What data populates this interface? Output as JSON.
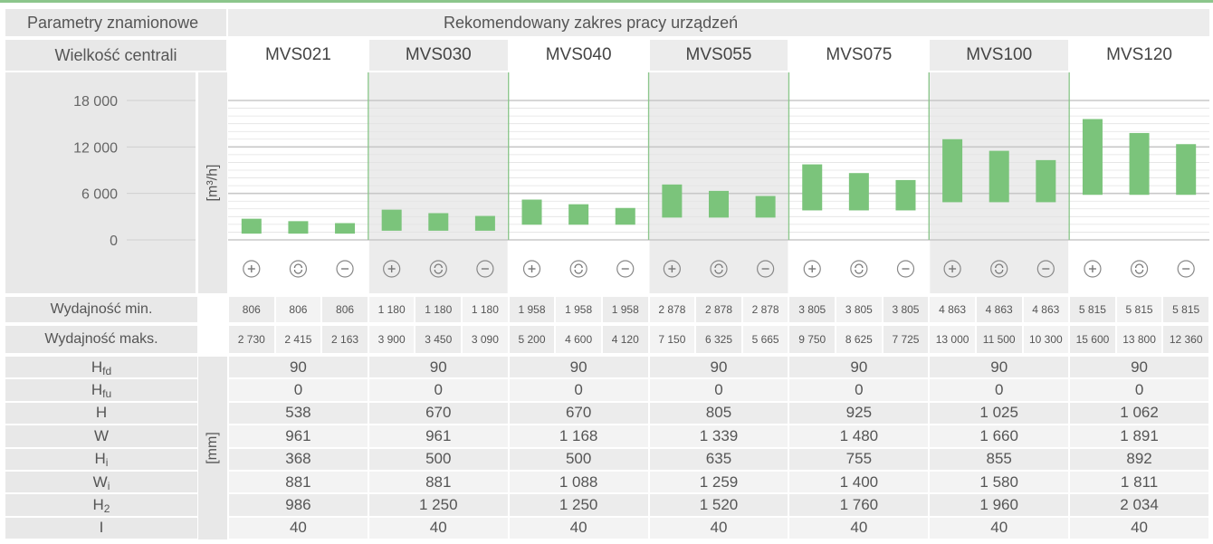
{
  "header": {
    "left_title": "Parametry znamionowe",
    "right_title": "Rekomendowany zakres pracy urządzeń"
  },
  "size_label": "Wielkość centrali",
  "models": [
    "MVS021",
    "MVS030",
    "MVS040",
    "MVS055",
    "MVS075",
    "MVS100",
    "MVS120"
  ],
  "unit_flow": "[m³/h]",
  "unit_mm": "[mm]",
  "icons": [
    "plus-circle-icon",
    "sync-circle-icon",
    "minus-circle-icon"
  ],
  "chart_data": {
    "type": "bar",
    "subtype": "floating-range",
    "ylim": [
      0,
      18000
    ],
    "yticks": [
      0,
      6000,
      12000,
      18000
    ],
    "ytick_labels": [
      "0",
      "6 000",
      "12 000",
      "18 000"
    ],
    "ylabel": "[m³/h]",
    "colors": {
      "bar": "#7bc47b",
      "divider": "#8cc68c"
    },
    "ranges": [
      {
        "model": "MVS021",
        "low": [
          806,
          806,
          806
        ],
        "high": [
          2730,
          2415,
          2163
        ]
      },
      {
        "model": "MVS030",
        "low": [
          1180,
          1180,
          1180
        ],
        "high": [
          3900,
          3450,
          3090
        ]
      },
      {
        "model": "MVS040",
        "low": [
          1958,
          1958,
          1958
        ],
        "high": [
          5200,
          4600,
          4120
        ]
      },
      {
        "model": "MVS055",
        "low": [
          2878,
          2878,
          2878
        ],
        "high": [
          7150,
          6325,
          5665
        ]
      },
      {
        "model": "MVS075",
        "low": [
          3805,
          3805,
          3805
        ],
        "high": [
          9750,
          8625,
          7725
        ]
      },
      {
        "model": "MVS100",
        "low": [
          4863,
          4863,
          4863
        ],
        "high": [
          13000,
          11500,
          10300
        ]
      },
      {
        "model": "MVS120",
        "low": [
          5815,
          5815,
          5815
        ],
        "high": [
          15600,
          13800,
          12360
        ]
      }
    ]
  },
  "min_row": {
    "label": "Wydajność min.",
    "values": [
      "806",
      "806",
      "806",
      "1 180",
      "1 180",
      "1 180",
      "1 958",
      "1 958",
      "1 958",
      "2 878",
      "2 878",
      "2 878",
      "3 805",
      "3 805",
      "3 805",
      "4 863",
      "4 863",
      "4 863",
      "5 815",
      "5 815",
      "5 815"
    ]
  },
  "max_row": {
    "label": "Wydajność maks.",
    "values": [
      "2 730",
      "2 415",
      "2 163",
      "3 900",
      "3 450",
      "3 090",
      "5 200",
      "4 600",
      "4 120",
      "7 150",
      "6 325",
      "5 665",
      "9 750",
      "8 625",
      "7 725",
      "13 000",
      "11 500",
      "10 300",
      "15 600",
      "13 800",
      "12 360"
    ]
  },
  "dims": [
    {
      "label": "H",
      "sub": "fd",
      "values": [
        "90",
        "90",
        "90",
        "90",
        "90",
        "90",
        "90"
      ]
    },
    {
      "label": "H",
      "sub": "fu",
      "values": [
        "0",
        "0",
        "0",
        "0",
        "0",
        "0",
        "0"
      ]
    },
    {
      "label": "H",
      "sub": "",
      "values": [
        "538",
        "670",
        "670",
        "805",
        "925",
        "1 025",
        "1 062"
      ]
    },
    {
      "label": "W",
      "sub": "",
      "values": [
        "961",
        "961",
        "1 168",
        "1 339",
        "1 480",
        "1 660",
        "1 891"
      ]
    },
    {
      "label": "H",
      "sub": "i",
      "values": [
        "368",
        "500",
        "500",
        "635",
        "755",
        "855",
        "892"
      ]
    },
    {
      "label": "W",
      "sub": "i",
      "values": [
        "881",
        "881",
        "1 088",
        "1 259",
        "1 400",
        "1 580",
        "1 811"
      ]
    },
    {
      "label": "H",
      "sub": "2",
      "values": [
        "986",
        "1 250",
        "1 250",
        "1 520",
        "1 760",
        "1 960",
        "2 034"
      ]
    },
    {
      "label": "I",
      "sub": "",
      "values": [
        "40",
        "40",
        "40",
        "40",
        "40",
        "40",
        "40"
      ]
    }
  ]
}
